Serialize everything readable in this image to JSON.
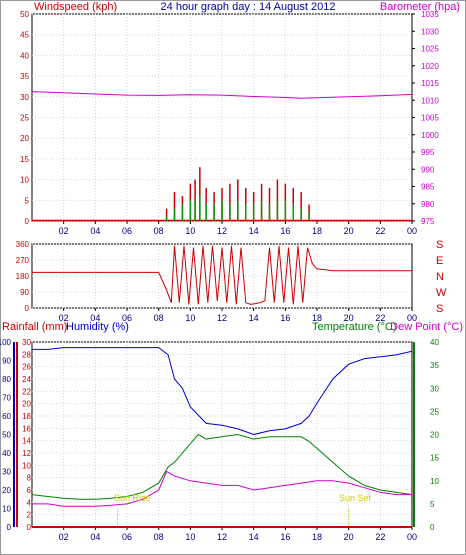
{
  "header": {
    "left_label": "Windspeed (kph)",
    "title": "24 hour graph day : 14 August 2012",
    "right_label": "Barometer (hpa)"
  },
  "lower_header": {
    "rainfall_label": "Rainfall (mm)",
    "humidity_label": "Humidity (%)",
    "temperature_label": "Temperature (°C)",
    "dewpoint_label": "Dew Point (°C)"
  },
  "markers": {
    "sunrise_label": "Sun Rise",
    "sunset_label": "Sun Set"
  },
  "colors": {
    "wind_axis": "#cc0000",
    "wind_avg": "#00a000",
    "gust": "#cc0000",
    "barometer": "#cc00cc",
    "direction": "#cc0000",
    "rain_axis": "#cc0000",
    "humidity": "#0000cc",
    "temperature": "#008000",
    "dewpoint": "#cc00cc",
    "sun": "#cccc00",
    "title": "#0000aa"
  },
  "chart_data": [
    {
      "type": "line",
      "id": "wind_barometer",
      "left_axis": {
        "label": "Windspeed (kph)",
        "ylim": [
          0,
          50
        ],
        "ticks": [
          0,
          5,
          10,
          15,
          20,
          25,
          30,
          35,
          40,
          45,
          50
        ]
      },
      "right_axis": {
        "label": "Barometer (hpa)",
        "ylim": [
          975,
          1035
        ],
        "ticks": [
          975,
          980,
          985,
          990,
          995,
          1000,
          1005,
          1010,
          1015,
          1020,
          1025,
          1030,
          1035
        ]
      },
      "x_ticks": [
        "02",
        "04",
        "06",
        "08",
        "10",
        "12",
        "14",
        "16",
        "18",
        "20",
        "22",
        "00"
      ],
      "xlim": [
        0,
        24
      ],
      "series": [
        {
          "name": "Barometer (hpa)",
          "axis": "right",
          "x": [
            0,
            2,
            4,
            6,
            8,
            10,
            12,
            14,
            16,
            17,
            18,
            20,
            22,
            24
          ],
          "values": [
            1012.5,
            1012.2,
            1011.8,
            1011.5,
            1011.4,
            1011.6,
            1011.5,
            1011.1,
            1010.8,
            1010.6,
            1010.7,
            1011.0,
            1011.3,
            1011.7
          ]
        },
        {
          "axis": "left",
          "role": "gust",
          "x": [
            8.5,
            9,
            9.5,
            10,
            10.3,
            10.6,
            11,
            11.5,
            12,
            12.5,
            13,
            13.5,
            14,
            14.5,
            15,
            15.5,
            16,
            16.5,
            17,
            17.5
          ],
          "values": [
            3,
            7,
            6,
            9,
            10,
            13,
            8,
            7,
            8,
            9,
            10,
            8,
            7,
            9,
            8,
            10,
            9,
            8,
            7,
            4
          ]
        },
        {
          "axis": "left",
          "role": "average",
          "x": [
            8.5,
            9,
            9.5,
            10,
            10.3,
            10.6,
            11,
            11.5,
            12,
            12.5,
            13,
            13.5,
            14,
            14.5,
            15,
            15.5,
            16,
            16.5,
            17,
            17.5
          ],
          "values": [
            1,
            3,
            4,
            5,
            5,
            6,
            4,
            4,
            5,
            4,
            5,
            4,
            4,
            5,
            4,
            5,
            5,
            4,
            3,
            2
          ]
        }
      ]
    },
    {
      "type": "line",
      "id": "wind_direction",
      "left_axis": {
        "ylim": [
          0,
          360
        ],
        "ticks": [
          0,
          90,
          180,
          270,
          360
        ]
      },
      "right_axis": {
        "ticks": [
          "S",
          "E",
          "N",
          "W",
          "S"
        ]
      },
      "x_ticks": [
        "02",
        "04",
        "06",
        "08",
        "10",
        "12",
        "14",
        "16",
        "18",
        "20",
        "22",
        "00"
      ],
      "xlim": [
        0,
        24
      ],
      "series": [
        {
          "axis": "left",
          "x": [
            0,
            8,
            8.5,
            8.8,
            9.0,
            9.3,
            9.6,
            9.9,
            10.2,
            10.5,
            10.8,
            11.1,
            11.4,
            11.7,
            12.0,
            12.3,
            12.6,
            12.9,
            13.2,
            13.5,
            13.8,
            14.1,
            14.4,
            14.7,
            15.0,
            15.3,
            15.6,
            15.9,
            16.2,
            16.5,
            16.8,
            17.1,
            17.4,
            17.7,
            18.0,
            18.5,
            19,
            20,
            24
          ],
          "values": [
            200,
            200,
            100,
            30,
            350,
            30,
            350,
            20,
            340,
            20,
            350,
            30,
            350,
            40,
            340,
            30,
            350,
            20,
            340,
            30,
            20,
            25,
            30,
            40,
            340,
            30,
            350,
            30,
            340,
            20,
            350,
            30,
            340,
            250,
            220,
            215,
            210,
            210,
            210
          ]
        }
      ]
    },
    {
      "type": "line",
      "id": "rain_humidity_temperature",
      "left_axes": [
        {
          "label": "Humidity (%)",
          "ylim": [
            0,
            100
          ],
          "ticks": [
            0,
            10,
            20,
            30,
            40,
            50,
            60,
            70,
            80,
            90,
            100
          ]
        },
        {
          "label": "Rainfall (mm)",
          "ylim": [
            0,
            30
          ],
          "ticks": [
            0,
            2,
            4,
            6,
            8,
            10,
            12,
            14,
            16,
            18,
            20,
            22,
            24,
            26,
            28,
            30
          ]
        }
      ],
      "right_axis": {
        "label": "Temperature (°C)",
        "ylim": [
          0,
          40
        ],
        "ticks": [
          0,
          5,
          10,
          15,
          20,
          25,
          30,
          35,
          40
        ]
      },
      "x_ticks": [
        "02",
        "04",
        "06",
        "08",
        "10",
        "12",
        "14",
        "16",
        "18",
        "20",
        "22",
        "00"
      ],
      "xlim": [
        0,
        24
      ],
      "annotations": [
        {
          "text": "Sun Rise",
          "x": 5.4
        },
        {
          "text": "Sun Set",
          "x": 20.0
        }
      ],
      "series": [
        {
          "name": "Humidity (%)",
          "axis": "humidity",
          "x": [
            0,
            1,
            2,
            4,
            6,
            8,
            8.6,
            9.0,
            9.5,
            10,
            11,
            12,
            13,
            14,
            15,
            16,
            17,
            17.5,
            18,
            19,
            20,
            21,
            22,
            23,
            24
          ],
          "values": [
            96,
            96,
            97,
            97,
            97,
            97,
            93,
            80,
            75,
            65,
            56,
            55,
            53,
            50,
            52,
            53,
            56,
            60,
            67,
            80,
            88,
            91,
            92,
            93,
            95
          ]
        },
        {
          "name": "Temperature (°C)",
          "axis": "right",
          "x": [
            0,
            1,
            2,
            3,
            4,
            5,
            6,
            7,
            8,
            8.6,
            9,
            10,
            10.5,
            11,
            12,
            13,
            14,
            15,
            16,
            17,
            17.5,
            18,
            19,
            20,
            21,
            22,
            23,
            24
          ],
          "values": [
            7,
            6.6,
            6.2,
            6.0,
            6.0,
            6.2,
            6.6,
            7.5,
            9.5,
            13,
            14,
            18,
            20,
            19,
            19.5,
            20,
            19,
            19.5,
            19.5,
            19.5,
            18.5,
            17,
            14,
            11,
            9,
            8,
            7.5,
            7
          ]
        },
        {
          "name": "Dew Point (°C)",
          "axis": "right",
          "x": [
            0,
            1,
            2,
            3,
            4,
            5,
            6,
            7,
            8,
            8.5,
            9,
            10,
            11,
            12,
            13,
            14,
            15,
            16,
            17,
            18,
            19,
            20,
            21,
            22,
            23,
            24
          ],
          "values": [
            5,
            5,
            4.5,
            4.5,
            4.5,
            4.7,
            5,
            6,
            8,
            12,
            11,
            10,
            9.5,
            9,
            9,
            8,
            8.5,
            9,
            9.5,
            10,
            10,
            9.5,
            8.5,
            7.5,
            7,
            7
          ]
        },
        {
          "name": "Rainfall (mm)",
          "axis": "rain",
          "x": [
            0,
            24
          ],
          "values": [
            0,
            0
          ]
        }
      ]
    }
  ]
}
